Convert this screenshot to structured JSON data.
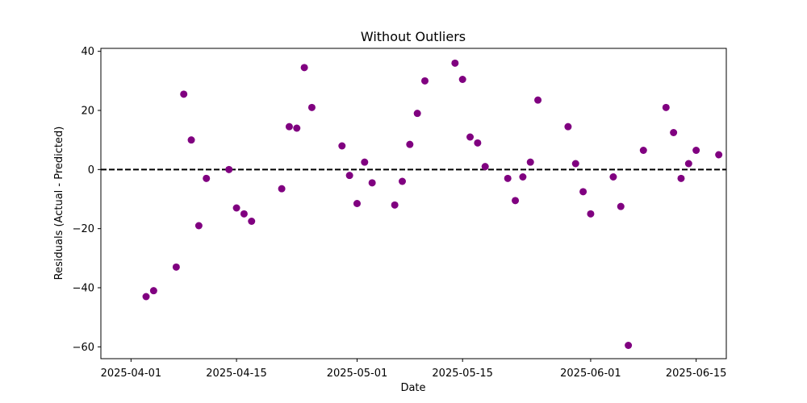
{
  "chart_data": {
    "type": "scatter",
    "title": "Without Outliers",
    "xlabel": "Date",
    "ylabel": "Residuals (Actual - Predicted)",
    "x_tick_labels": [
      "2025-04-01",
      "2025-04-15",
      "2025-05-01",
      "2025-05-15",
      "2025-06-01",
      "2025-06-15"
    ],
    "y_ticks": [
      40,
      20,
      0,
      -20,
      -40,
      -60
    ],
    "xlim": [
      "2025-03-28",
      "2025-06-19"
    ],
    "ylim": [
      -64,
      41
    ],
    "reference_line": {
      "y": 0,
      "style": "dashed",
      "color": "#000000"
    },
    "grid": false,
    "marker_color": "#800080",
    "points": [
      {
        "x": "2025-04-03",
        "y": -43
      },
      {
        "x": "2025-04-04",
        "y": -41
      },
      {
        "x": "2025-04-07",
        "y": -33
      },
      {
        "x": "2025-04-08",
        "y": 25.5
      },
      {
        "x": "2025-04-09",
        "y": 10
      },
      {
        "x": "2025-04-10",
        "y": -19
      },
      {
        "x": "2025-04-11",
        "y": -3
      },
      {
        "x": "2025-04-14",
        "y": 0
      },
      {
        "x": "2025-04-15",
        "y": -13
      },
      {
        "x": "2025-04-16",
        "y": -15
      },
      {
        "x": "2025-04-17",
        "y": -17.5
      },
      {
        "x": "2025-04-21",
        "y": -6.5
      },
      {
        "x": "2025-04-22",
        "y": 14.5
      },
      {
        "x": "2025-04-23",
        "y": 14
      },
      {
        "x": "2025-04-24",
        "y": 34.5
      },
      {
        "x": "2025-04-25",
        "y": 21
      },
      {
        "x": "2025-04-29",
        "y": 8
      },
      {
        "x": "2025-04-30",
        "y": -2
      },
      {
        "x": "2025-05-01",
        "y": -11.5
      },
      {
        "x": "2025-05-02",
        "y": 2.5
      },
      {
        "x": "2025-05-03",
        "y": -4.5
      },
      {
        "x": "2025-05-06",
        "y": -12
      },
      {
        "x": "2025-05-07",
        "y": -4
      },
      {
        "x": "2025-05-08",
        "y": 8.5
      },
      {
        "x": "2025-05-09",
        "y": 19
      },
      {
        "x": "2025-05-10",
        "y": 30
      },
      {
        "x": "2025-05-14",
        "y": 36
      },
      {
        "x": "2025-05-15",
        "y": 30.5
      },
      {
        "x": "2025-05-16",
        "y": 11
      },
      {
        "x": "2025-05-17",
        "y": 9
      },
      {
        "x": "2025-05-18",
        "y": 1
      },
      {
        "x": "2025-05-21",
        "y": -3
      },
      {
        "x": "2025-05-22",
        "y": -10.5
      },
      {
        "x": "2025-05-23",
        "y": -2.5
      },
      {
        "x": "2025-05-24",
        "y": 2.5
      },
      {
        "x": "2025-05-25",
        "y": 23.5
      },
      {
        "x": "2025-05-29",
        "y": 14.5
      },
      {
        "x": "2025-05-30",
        "y": 2
      },
      {
        "x": "2025-05-31",
        "y": -7.5
      },
      {
        "x": "2025-06-01",
        "y": -15
      },
      {
        "x": "2025-06-04",
        "y": -2.5
      },
      {
        "x": "2025-06-05",
        "y": -12.5
      },
      {
        "x": "2025-06-06",
        "y": -59.5
      },
      {
        "x": "2025-06-08",
        "y": 6.5
      },
      {
        "x": "2025-06-11",
        "y": 21
      },
      {
        "x": "2025-06-12",
        "y": 12.5
      },
      {
        "x": "2025-06-13",
        "y": -3
      },
      {
        "x": "2025-06-14",
        "y": 2
      },
      {
        "x": "2025-06-15",
        "y": 6.5
      },
      {
        "x": "2025-06-18",
        "y": 5
      }
    ]
  }
}
